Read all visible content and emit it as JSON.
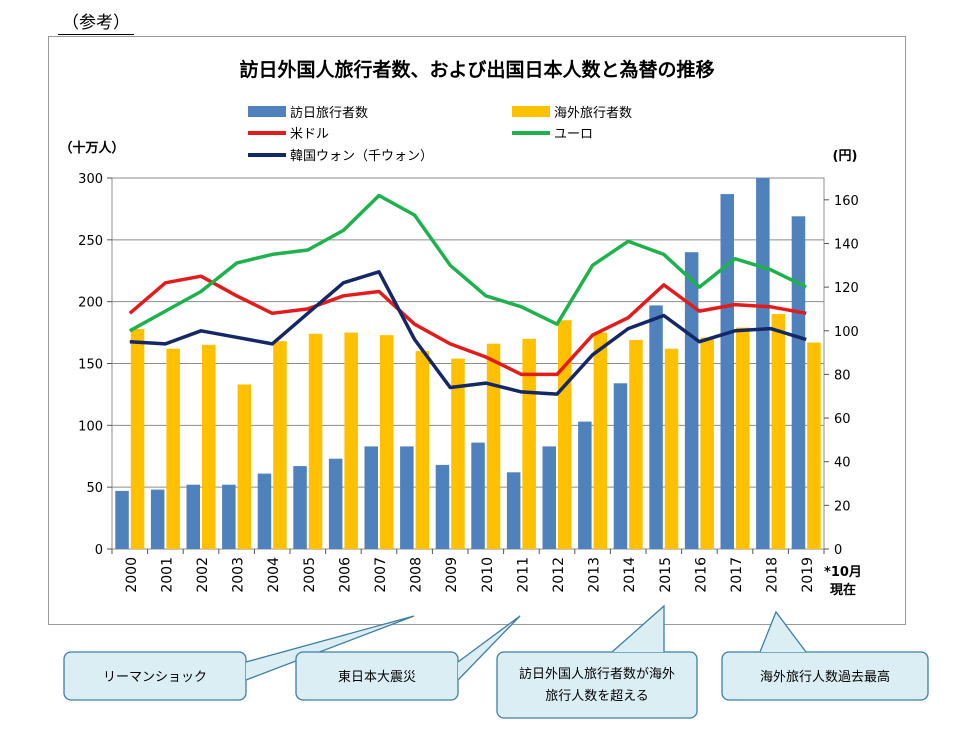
{
  "ref_label": "（参考）",
  "chart_data": {
    "type": "bar",
    "title": "訪日外国人旅行者数、および出国日本人数と為替の推移",
    "y_left_unit": "（十万人）",
    "y_right_unit": "(円)",
    "categories": [
      "2000",
      "2001",
      "2002",
      "2003",
      "2004",
      "2005",
      "2006",
      "2007",
      "2008",
      "2009",
      "2010",
      "2011",
      "2012",
      "2013",
      "2014",
      "2015",
      "2016",
      "2017",
      "2018",
      "2019"
    ],
    "last_category_note": "*10月\n現在",
    "ylim_left": [
      0,
      300
    ],
    "ylim_right": [
      0,
      170
    ],
    "yticks_left": [
      0,
      50,
      100,
      150,
      200,
      250,
      300
    ],
    "yticks_right": [
      0,
      20,
      40,
      60,
      80,
      100,
      120,
      140,
      160
    ],
    "bar_series": [
      {
        "name": "訪日旅行者数",
        "color": "#4f81bd",
        "values": [
          47,
          48,
          52,
          52,
          61,
          67,
          73,
          83,
          83,
          68,
          86,
          62,
          83,
          103,
          134,
          197,
          240,
          287,
          300,
          269
        ]
      },
      {
        "name": "海外旅行者数",
        "color": "#ffc000",
        "values": [
          178,
          162,
          165,
          133,
          168,
          174,
          175,
          173,
          160,
          154,
          166,
          170,
          185,
          175,
          169,
          162,
          171,
          179,
          190,
          167
        ]
      }
    ],
    "line_series": [
      {
        "name": "米ドル",
        "color": "#e31b1b",
        "values": [
          108,
          122,
          125,
          116,
          108,
          110,
          116,
          118,
          103,
          94,
          88,
          80,
          80,
          98,
          106,
          121,
          109,
          112,
          111,
          108
        ]
      },
      {
        "name": "ユーロ",
        "color": "#1db24b",
        "values": [
          100,
          109,
          118,
          131,
          135,
          137,
          146,
          162,
          153,
          130,
          116,
          111,
          103,
          130,
          141,
          135,
          120,
          133,
          128,
          120
        ]
      },
      {
        "name": "韓国ウォン（千ウォン）",
        "color": "#142766",
        "values": [
          95,
          94,
          100,
          97,
          94,
          108,
          122,
          127,
          96,
          74,
          76,
          72,
          71,
          89,
          101,
          107,
          95,
          100,
          101,
          96
        ]
      }
    ],
    "legend": [
      {
        "label": "訪日旅行者数",
        "kind": "bar",
        "color": "#4f81bd"
      },
      {
        "label": "海外旅行者数",
        "kind": "bar",
        "color": "#ffc000"
      },
      {
        "label": "米ドル",
        "kind": "line",
        "color": "#e31b1b"
      },
      {
        "label": "ユーロ",
        "kind": "line",
        "color": "#1db24b"
      },
      {
        "label": "韓国ウォン（千ウォン）",
        "kind": "line",
        "color": "#142766"
      }
    ],
    "annotations": [
      {
        "text": "リーマンショック",
        "category": "2008"
      },
      {
        "text": "東日本大震災",
        "category": "2011"
      },
      {
        "text": "訪日外国人旅行者数が海外旅行人数を超える",
        "category": "2015"
      },
      {
        "text": "海外旅行人数過去最高",
        "category": "2018"
      }
    ]
  }
}
